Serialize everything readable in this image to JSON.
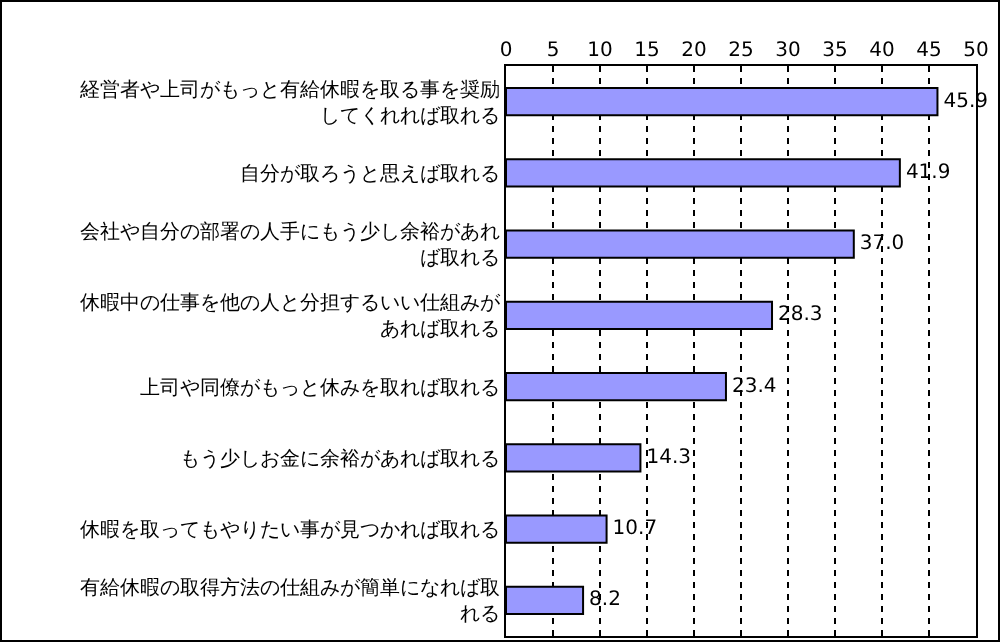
{
  "chart_data": {
    "type": "bar",
    "orientation": "horizontal",
    "categories": [
      "経営者や上司がもっと有給休暇を取る事を奨励してくれれば取れる",
      "自分が取ろうと思えば取れる",
      "会社や自分の部署の人手にもう少し余裕があれば取れる",
      "休暇中の仕事を他の人と分担するいい仕組みがあれば取れる",
      "上司や同僚がもっと休みを取れば取れる",
      "もう少しお金に余裕があれば取れる",
      "休暇を取ってもやりたい事が見つかれば取れる",
      "有給休暇の取得方法の仕組みが簡単になれば取れる"
    ],
    "values": [
      45.9,
      41.9,
      37.0,
      28.3,
      23.4,
      14.3,
      10.7,
      8.2
    ],
    "value_labels": [
      "45.9",
      "41.9",
      "37.0",
      "28.3",
      "23.4",
      "14.3",
      "10.7",
      "8.2"
    ],
    "color": "#9999ff",
    "xlim": [
      0,
      50
    ],
    "xticks": [
      0,
      5,
      10,
      15,
      20,
      25,
      30,
      35,
      40,
      45,
      50
    ],
    "grid": "x",
    "legend": false
  }
}
